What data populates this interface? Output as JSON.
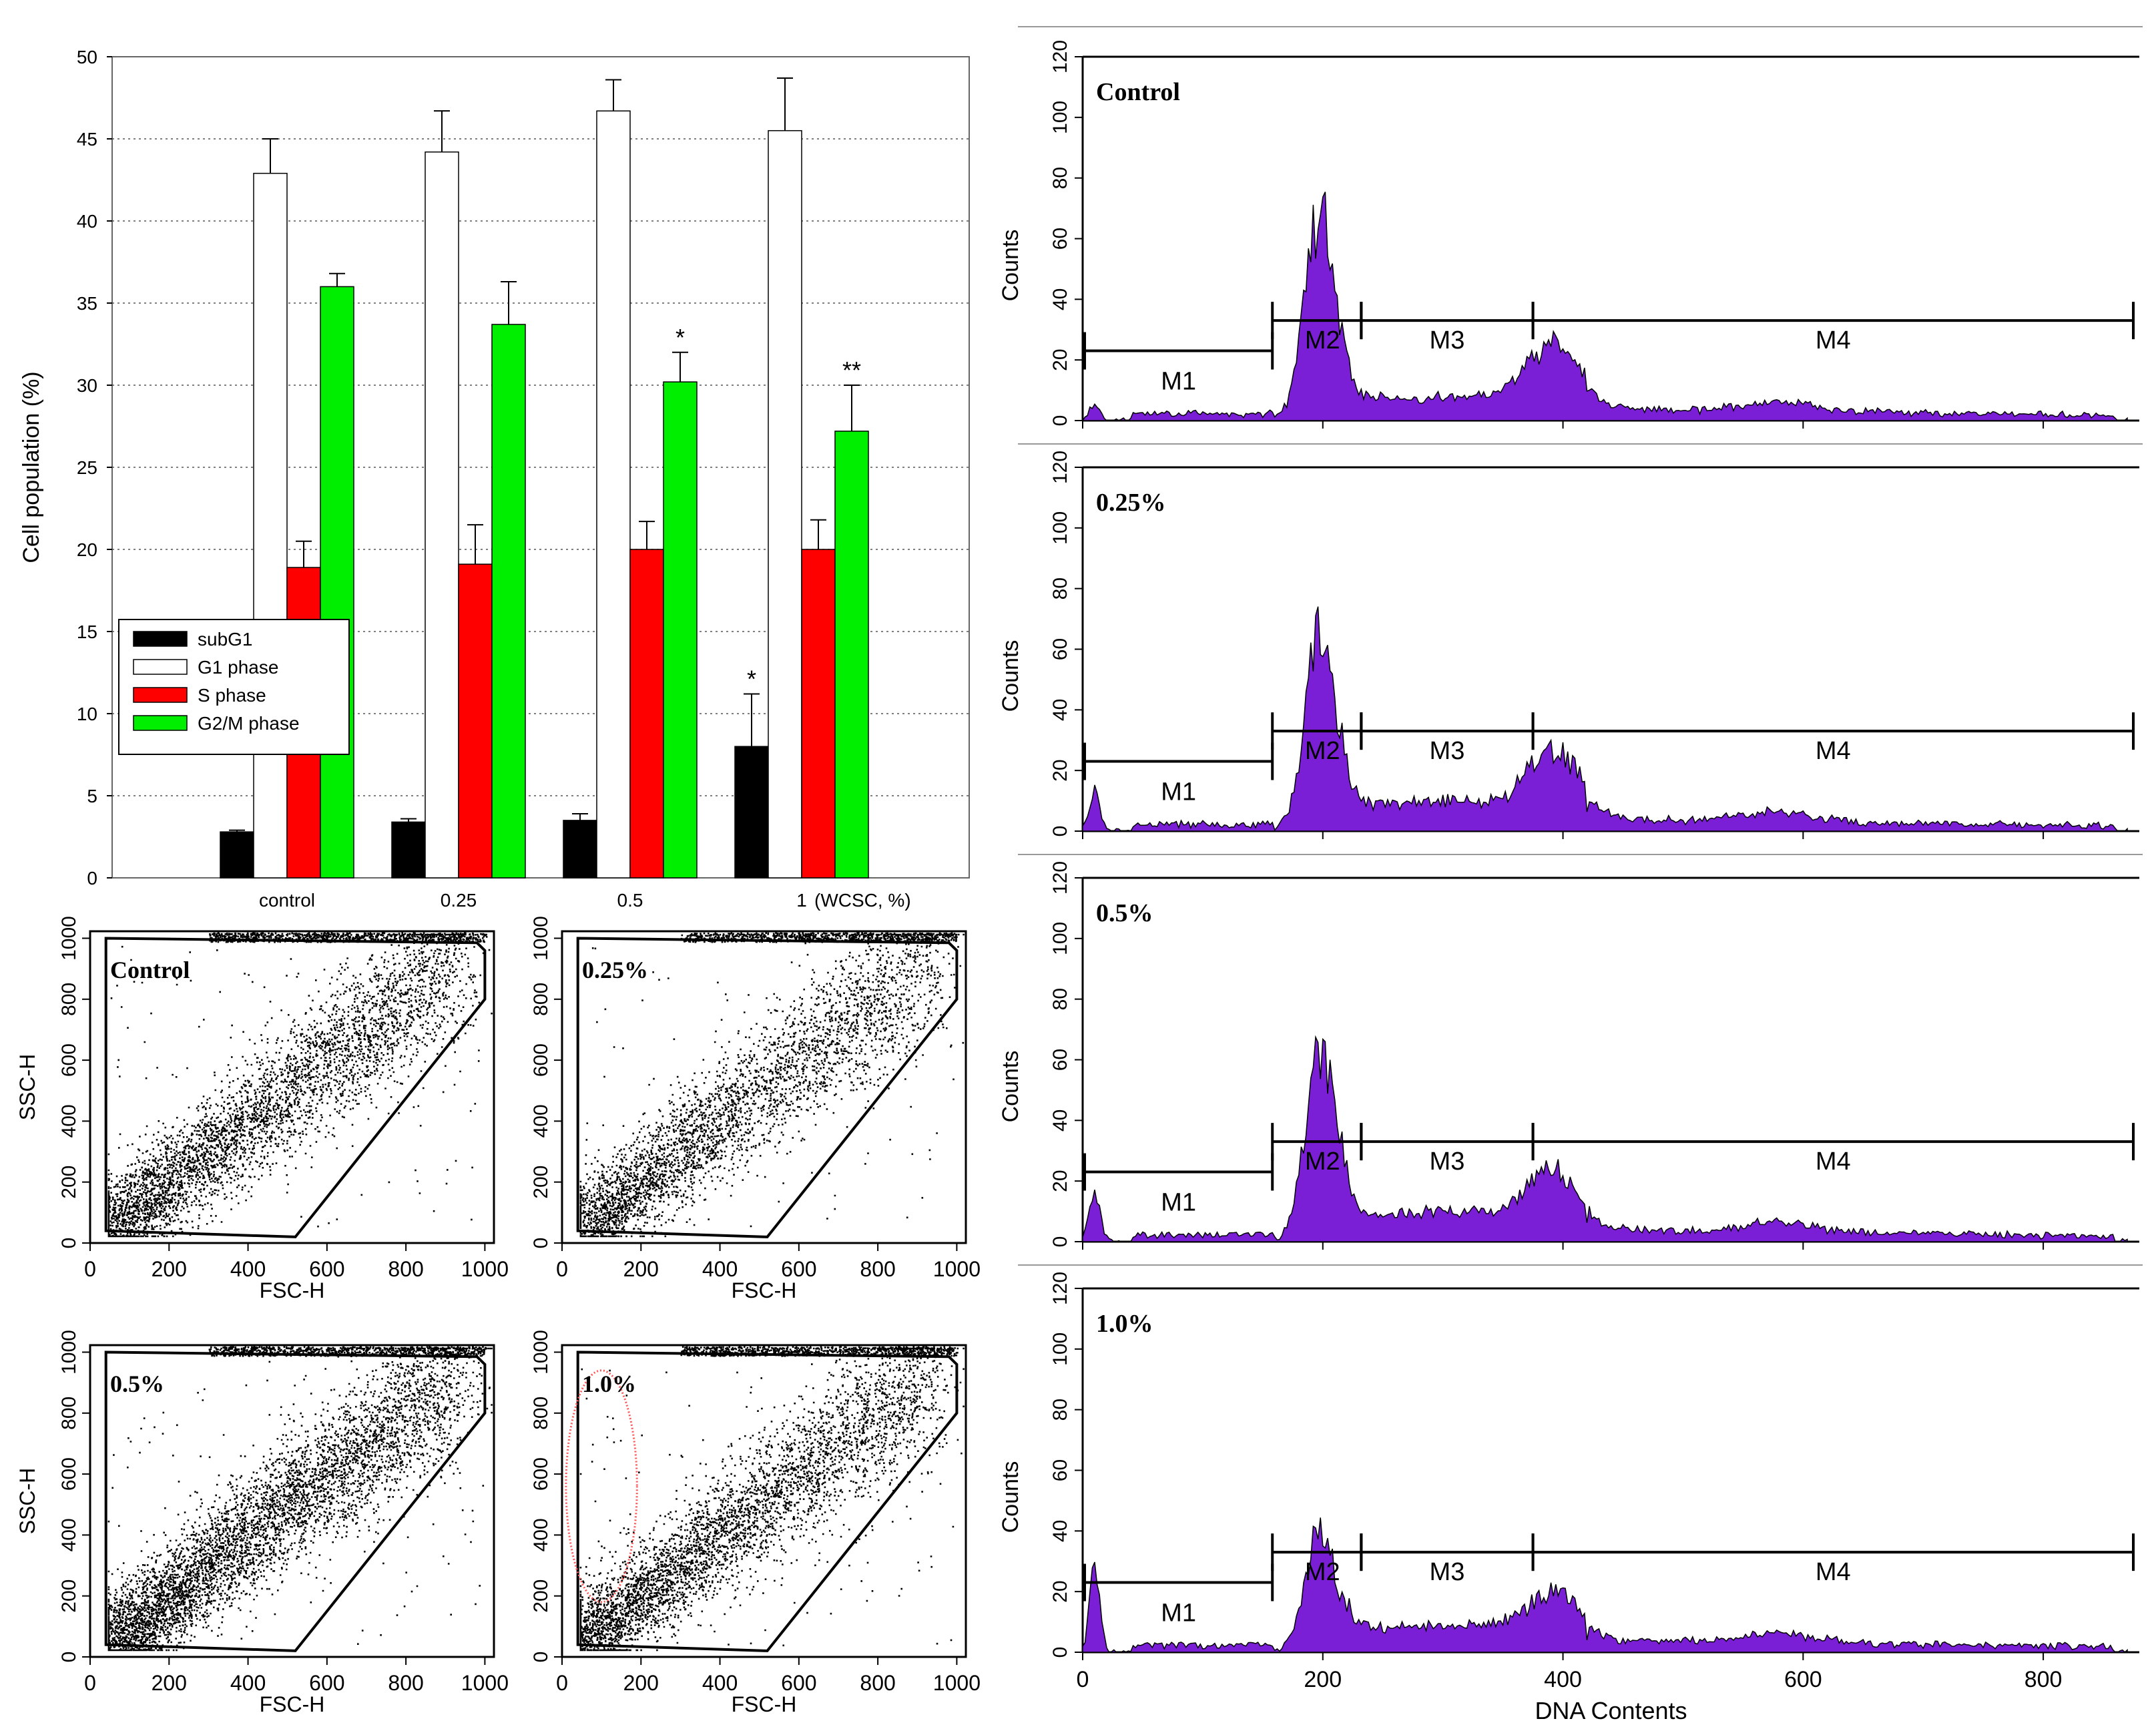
{
  "chart_data": [
    {
      "id": "bar",
      "type": "bar",
      "title": "",
      "xlabel": "",
      "ylabel": "Cell population (%)",
      "ylim": [
        0,
        50
      ],
      "yticks": [
        0,
        5,
        10,
        15,
        20,
        25,
        30,
        35,
        40,
        45,
        50
      ],
      "grid": true,
      "legend_position": "left-middle",
      "categories": [
        "control",
        "0.25",
        "0.5",
        "1"
      ],
      "x_unit_label": "(WCSC, %)",
      "series": [
        {
          "name": "subG1",
          "color": "#000000",
          "values": [
            2.8,
            3.4,
            3.5,
            8.0
          ],
          "errors": [
            0.1,
            0.2,
            0.4,
            3.2
          ],
          "sig": [
            "",
            "",
            "",
            "*"
          ]
        },
        {
          "name": "G1 phase",
          "color": "#ffffff",
          "values": [
            42.9,
            44.2,
            46.7,
            45.5
          ],
          "errors": [
            2.1,
            2.5,
            1.9,
            3.2
          ],
          "sig": [
            "",
            "",
            "",
            ""
          ]
        },
        {
          "name": "S phase",
          "color": "#ff0000",
          "values": [
            18.9,
            19.1,
            20.0,
            20.0
          ],
          "errors": [
            1.6,
            2.4,
            1.7,
            1.8
          ],
          "sig": [
            "",
            "",
            "",
            ""
          ]
        },
        {
          "name": "G2/M phase",
          "color": "#00ee00",
          "values": [
            36.0,
            33.7,
            30.2,
            27.2
          ],
          "errors": [
            0.8,
            2.6,
            1.8,
            2.8
          ],
          "sig": [
            "",
            "",
            "*",
            "**"
          ]
        }
      ]
    },
    {
      "id": "scatter",
      "type": "scatter",
      "xlabel": "FSC-H",
      "ylabel": "SSC-H",
      "xlim": [
        0,
        1023
      ],
      "ylim": [
        0,
        1023
      ],
      "xticks": [
        0,
        200,
        400,
        600,
        800,
        1000
      ],
      "yticks": [
        0,
        200,
        400,
        600,
        800,
        1000
      ],
      "gate_polygon": [
        [
          40,
          1000
        ],
        [
          980,
          985
        ],
        [
          1000,
          960
        ],
        [
          1000,
          800
        ],
        [
          520,
          20
        ],
        [
          40,
          40
        ]
      ],
      "highlight_ellipse_panel": 3,
      "highlight_ellipse": {
        "cx": 100,
        "cy": 560,
        "rx": 90,
        "ry": 380,
        "color": "#ff5555"
      },
      "panels": [
        {
          "label": "Control",
          "n_points": 4200,
          "spread": 1.0
        },
        {
          "label": "0.25%",
          "n_points": 3600,
          "spread": 1.0
        },
        {
          "label": "0.5%",
          "n_points": 5200,
          "spread": 1.0
        },
        {
          "label": "1.0%",
          "n_points": 4300,
          "spread": 1.0
        }
      ]
    },
    {
      "id": "histogram",
      "type": "area",
      "xlabel": "DNA Contents",
      "ylabel": "Counts",
      "xlim": [
        0,
        880
      ],
      "ylim": [
        0,
        120
      ],
      "xticks": [
        0,
        200,
        400,
        600,
        800
      ],
      "yticks": [
        0,
        20,
        40,
        60,
        80,
        100,
        120
      ],
      "fill_color": "#7a1fd6",
      "markers": [
        {
          "label": "M1",
          "x1": 0,
          "x2": 158
        },
        {
          "label": "M2",
          "x1": 158,
          "x2": 232
        },
        {
          "label": "M3",
          "x1": 232,
          "x2": 375
        },
        {
          "label": "M4",
          "x1": 375,
          "x2": 875
        }
      ],
      "panels": [
        {
          "label": "Control",
          "subg1": 5,
          "g1": 68,
          "s": 8,
          "g2": 18,
          "tail": 4
        },
        {
          "label": "0.25%",
          "subg1": 14,
          "g1": 64,
          "s": 10,
          "g2": 18,
          "tail": 4
        },
        {
          "label": "0.5%",
          "subg1": 17,
          "g1": 63,
          "s": 10,
          "g2": 15,
          "tail": 4
        },
        {
          "label": "1.0%",
          "subg1": 28,
          "g1": 40,
          "s": 9,
          "g2": 12,
          "tail": 4
        }
      ]
    }
  ]
}
